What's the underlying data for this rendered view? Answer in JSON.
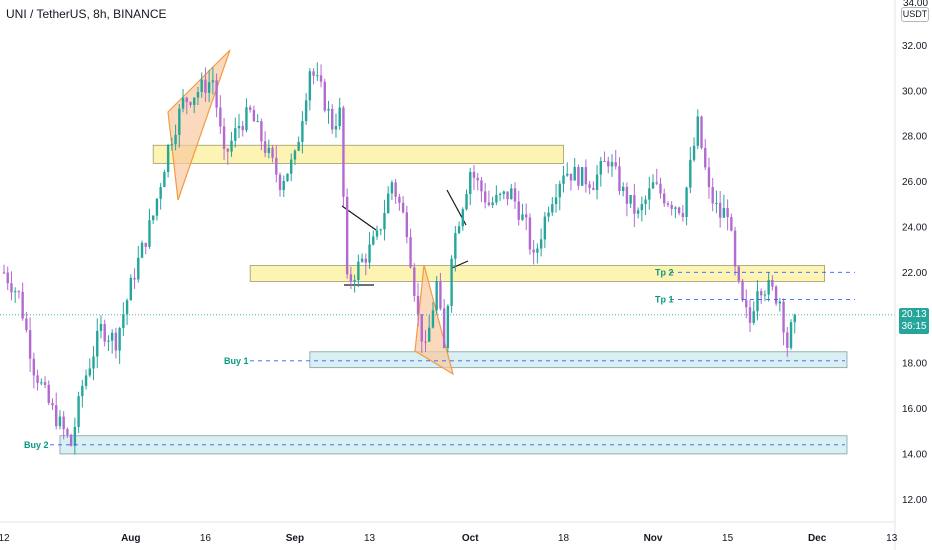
{
  "header": {
    "symbol": "UNI / TetherUS, 8h, BINANCE"
  },
  "price_axis": {
    "unit": "USDT",
    "last_price": "20.13",
    "countdown": "36:15",
    "top_partial_label": "34.00"
  },
  "colors": {
    "up_candle": "#26a69a",
    "down_candle": "#b36ad0",
    "zone_yellow_fill": "#fcef9a",
    "zone_blue_fill": "#d4ecef",
    "wedge_fill": "#f8c9a0",
    "wedge_stroke": "#f29b43",
    "dashed_level": "#2962ff",
    "level_text": "#089981",
    "last_price_line": "#26a69a"
  },
  "annotations": {
    "tp2": "Tp 2",
    "tp1": "Tp 1",
    "buy1": "Buy 1",
    "buy2": "Buy 2"
  },
  "chart_data": {
    "type": "candlestick",
    "title": "UNI / TetherUS, 8h, BINANCE",
    "ylim": [
      11.0,
      34.0
    ],
    "y_ticks": [
      12,
      14,
      16,
      18,
      20,
      22,
      24,
      26,
      28,
      30,
      32
    ],
    "x_tick_labels": [
      "12",
      "Aug",
      "16",
      "Sep",
      "13",
      "Oct",
      "18",
      "Nov",
      "15",
      "Dec",
      "13"
    ],
    "x_tick_index": [
      0,
      34,
      54,
      78,
      98,
      125,
      150,
      174,
      194,
      218,
      238
    ],
    "last_price": 20.13,
    "levels": {
      "tp2": 22.0,
      "tp1": 20.8,
      "buy1": 18.1,
      "buy2": 14.4
    },
    "zones": [
      {
        "y": [
          26.8,
          27.6
        ],
        "x_index": [
          40,
          150
        ],
        "color": "yellow"
      },
      {
        "y": [
          21.6,
          22.3
        ],
        "x_index": [
          66,
          220
        ],
        "color": "yellow"
      },
      {
        "y": [
          17.8,
          18.5
        ],
        "x_index": [
          82,
          226
        ],
        "color": "blue"
      },
      {
        "y": [
          14.0,
          14.8
        ],
        "x_index": [
          15,
          226
        ],
        "color": "blue"
      }
    ],
    "anchors": [
      [
        0,
        22.0
      ],
      [
        4,
        21.0
      ],
      [
        8,
        17.8
      ],
      [
        12,
        16.2
      ],
      [
        18,
        14.4
      ],
      [
        21,
        17.0
      ],
      [
        26,
        19.5
      ],
      [
        30,
        19.0
      ],
      [
        35,
        22.0
      ],
      [
        40,
        24.5
      ],
      [
        44,
        27.5
      ],
      [
        48,
        29.5
      ],
      [
        52,
        30.0
      ],
      [
        56,
        30.5
      ],
      [
        59,
        27.0
      ],
      [
        63,
        28.5
      ],
      [
        66,
        29.0
      ],
      [
        70,
        27.5
      ],
      [
        74,
        26.0
      ],
      [
        78,
        27.0
      ],
      [
        82,
        31.0
      ],
      [
        85,
        30.0
      ],
      [
        88,
        28.5
      ],
      [
        90,
        29.0
      ],
      [
        92,
        21.5
      ],
      [
        96,
        22.5
      ],
      [
        100,
        23.5
      ],
      [
        104,
        26.0
      ],
      [
        108,
        24.0
      ],
      [
        111,
        20.0
      ],
      [
        113,
        18.5
      ],
      [
        116,
        21.5
      ],
      [
        118,
        18.5
      ],
      [
        120,
        23.0
      ],
      [
        125,
        26.5
      ],
      [
        130,
        25.0
      ],
      [
        136,
        25.5
      ],
      [
        140,
        24.0
      ],
      [
        142,
        22.5
      ],
      [
        146,
        25.0
      ],
      [
        150,
        26.5
      ],
      [
        158,
        26.0
      ],
      [
        162,
        27.0
      ],
      [
        166,
        25.5
      ],
      [
        170,
        24.5
      ],
      [
        174,
        25.8
      ],
      [
        178,
        25.2
      ],
      [
        182,
        24.8
      ],
      [
        186,
        28.5
      ],
      [
        189,
        25.5
      ],
      [
        192,
        24.5
      ],
      [
        194,
        24.8
      ],
      [
        196,
        22.0
      ],
      [
        198,
        20.5
      ],
      [
        200,
        19.8
      ],
      [
        202,
        21.5
      ],
      [
        205,
        21.3
      ],
      [
        208,
        20.8
      ],
      [
        210,
        18.8
      ],
      [
        212,
        20.13
      ]
    ]
  }
}
